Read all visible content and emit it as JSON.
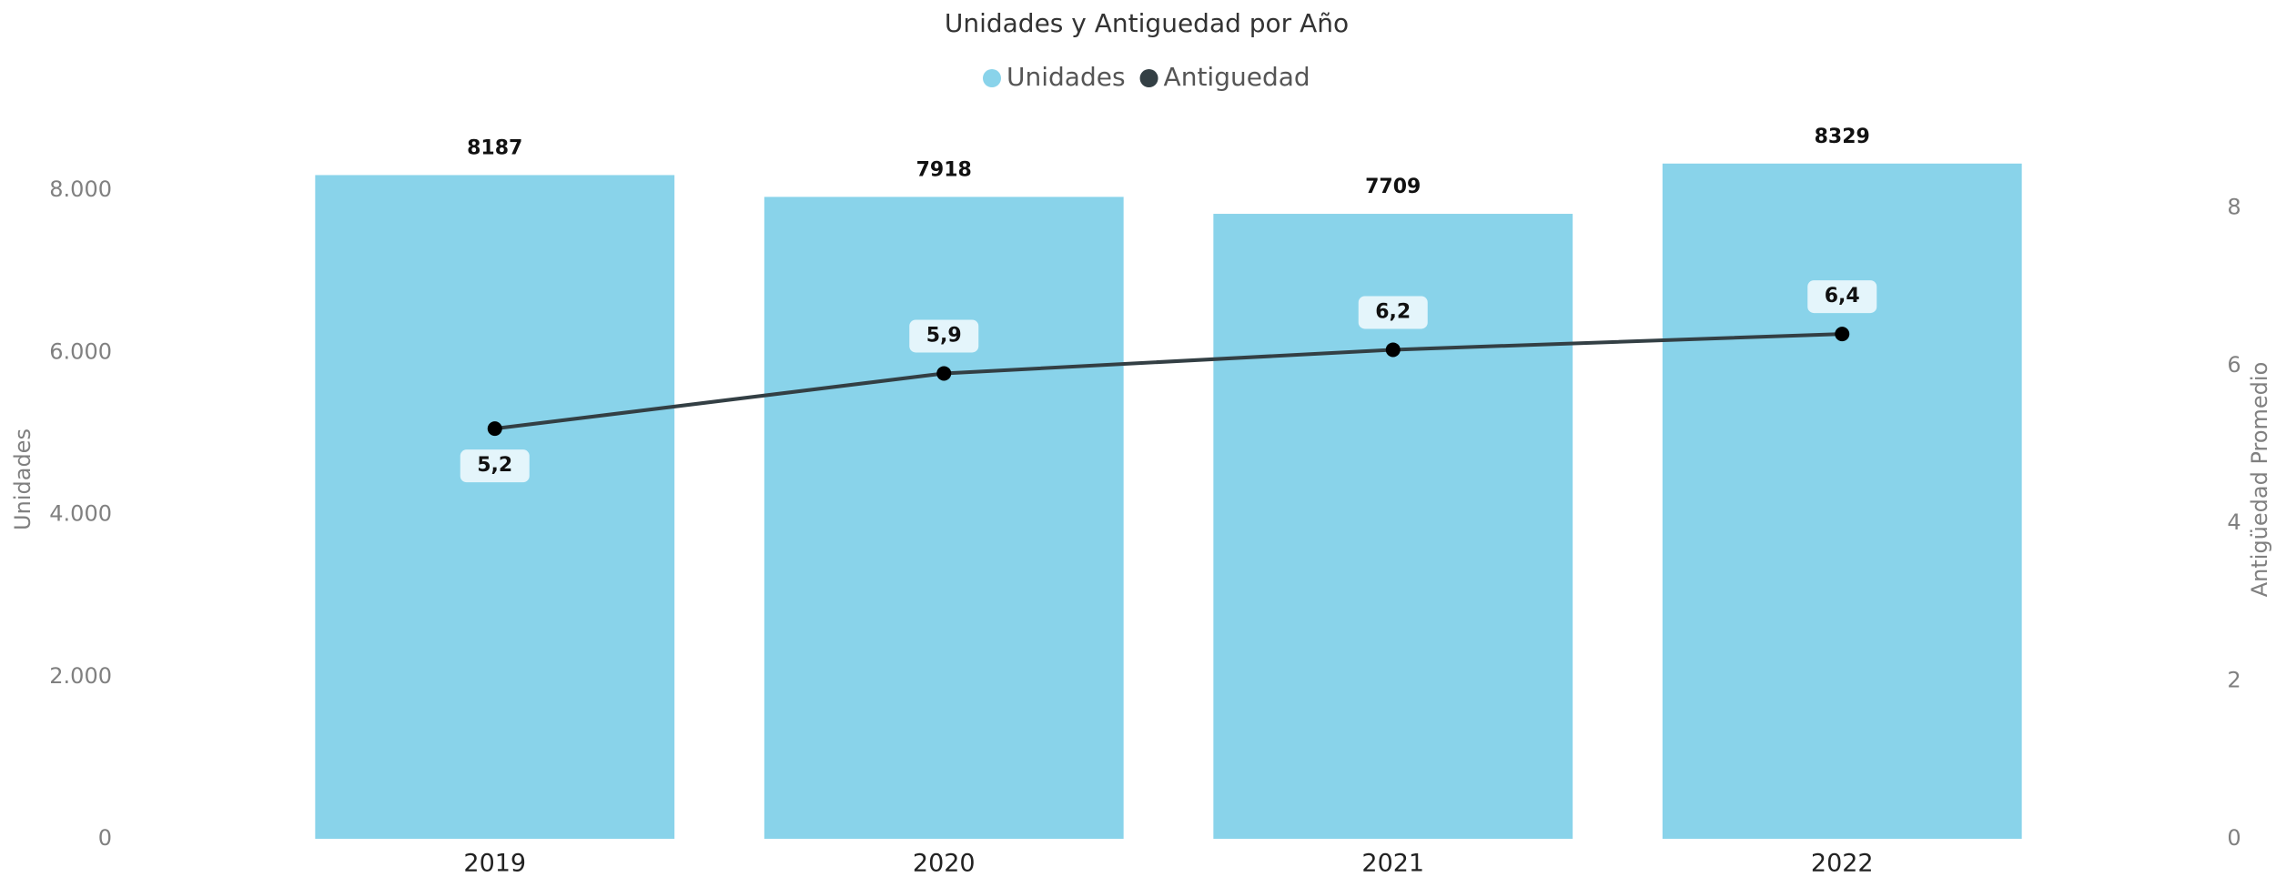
{
  "chart_data": {
    "type": "bar+line",
    "title": "Unidades y Antiguedad por Año",
    "categories": [
      "2019",
      "2020",
      "2021",
      "2022"
    ],
    "series": [
      {
        "name": "Unidades",
        "color": "#89d3ea",
        "type": "bar",
        "values": [
          8187,
          7918,
          7709,
          8329
        ]
      },
      {
        "name": "Antiguedad",
        "color": "#333f44",
        "type": "line",
        "axis": "y2",
        "values": [
          5.2,
          5.9,
          6.2,
          6.4
        ],
        "value_labels": [
          "5,2",
          "5,9",
          "6,2",
          "6,4"
        ]
      }
    ],
    "ylabel": "Unidades",
    "y2label": "Antigüedad Promedio",
    "ylim": [
      0,
      9000
    ],
    "yticks": [
      0,
      {
        "value": 2000,
        "label": "2.000"
      },
      {
        "value": 4000,
        "label": "4.000"
      },
      {
        "value": 6000,
        "label": "6.000"
      },
      {
        "value": 8000,
        "label": "8.000"
      }
    ],
    "y2lim": [
      0,
      9.25
    ],
    "y2ticks": [
      0,
      2,
      4,
      6,
      8
    ],
    "legend": "top"
  }
}
